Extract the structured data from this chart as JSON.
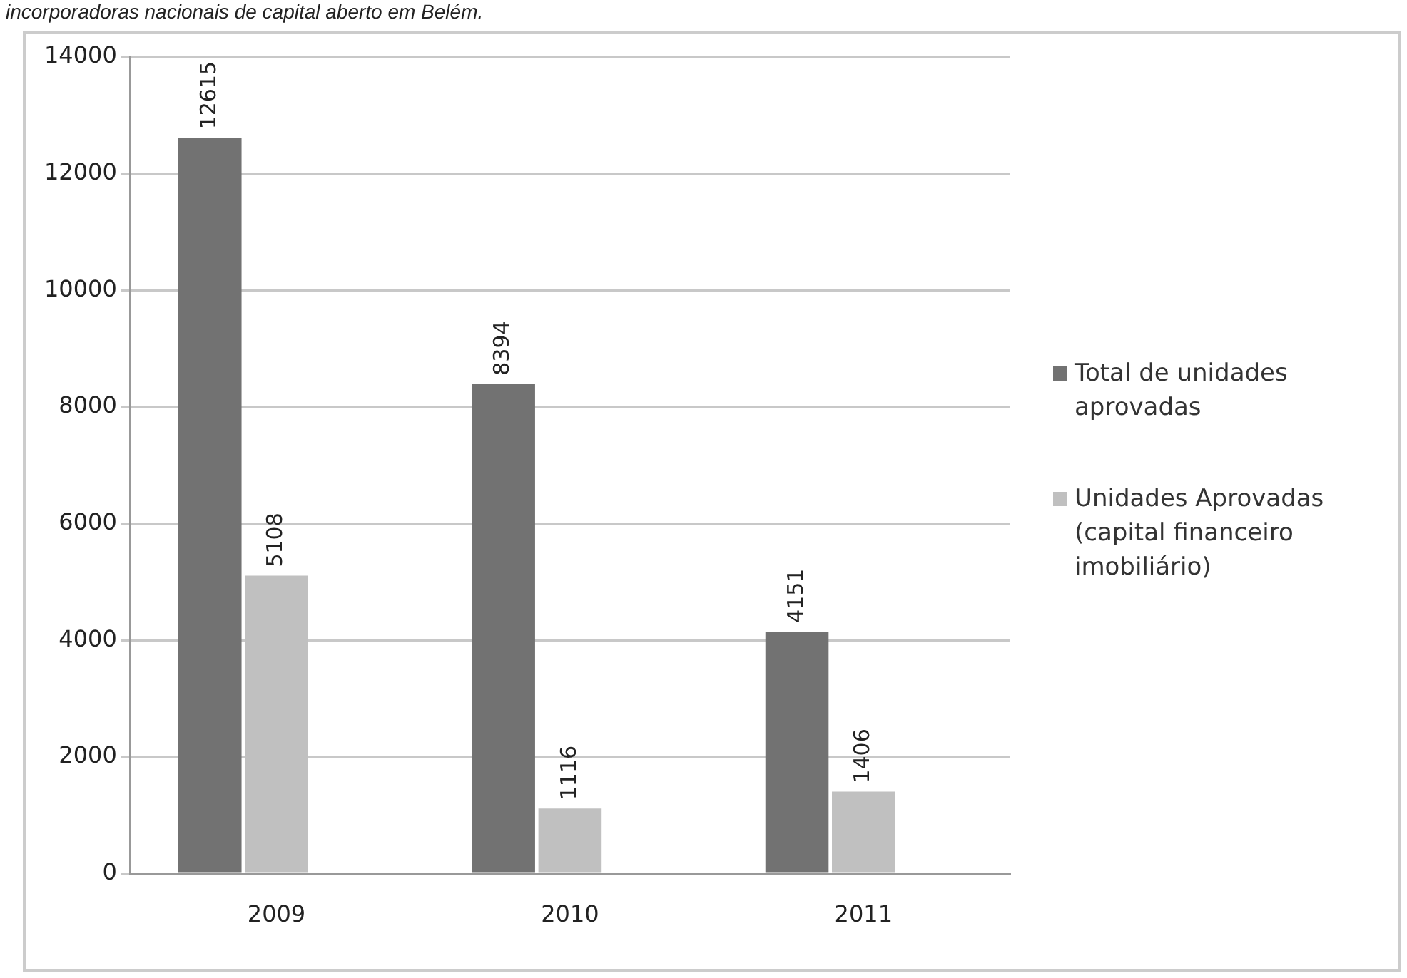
{
  "chart_data": {
    "type": "bar",
    "title": "incorporadoras nacionais de capital aberto em Belém.",
    "categories": [
      "2009",
      "2010",
      "2011"
    ],
    "series": [
      {
        "name": "Total de unidades aprovadas",
        "color": "#727272",
        "values": [
          12615,
          8394,
          4151
        ],
        "value_labels": [
          "12615",
          "8394",
          "4151"
        ]
      },
      {
        "name": "Unidades Aprovadas (capital financeiro imobiliário)",
        "color": "#c0c0c0",
        "values": [
          5108,
          1116,
          1406
        ],
        "value_labels": [
          "5108",
          "1116",
          "1406"
        ]
      },
      {
        "color": "#4d4d4d",
        "values": [
          null,
          null,
          null
        ]
      }
    ],
    "ylim": [
      0,
      14000
    ],
    "yticks": [
      0,
      2000,
      4000,
      6000,
      8000,
      10000,
      12000,
      14000
    ],
    "grid": "y",
    "legend": "right"
  }
}
